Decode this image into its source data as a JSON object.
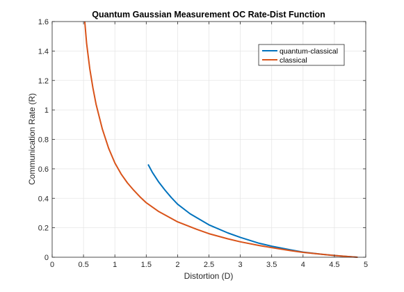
{
  "chart_data": {
    "type": "line",
    "title": "Quantum Gaussian Measurement OC Rate-Dist Function",
    "xlabel": "Distortion (D)",
    "ylabel": "Communication Rate (R)",
    "xlim": [
      0,
      5
    ],
    "ylim": [
      0,
      1.6
    ],
    "xticks": [
      "0",
      "0.5",
      "1",
      "1.5",
      "2",
      "2.5",
      "3",
      "3.5",
      "4",
      "4.5",
      "5"
    ],
    "yticks": [
      "0",
      "0.2",
      "0.4",
      "0.6",
      "0.8",
      "1",
      "1.2",
      "1.4",
      "1.6"
    ],
    "grid": true,
    "legend_position": "top-right",
    "series": [
      {
        "name": "quantum-classical",
        "color": "#0072BD",
        "x": [
          1.53,
          1.6,
          1.7,
          1.8,
          1.9,
          2.0,
          2.2,
          2.5,
          2.8,
          3.0,
          3.3,
          3.5,
          3.8,
          4.0,
          4.3,
          4.5,
          4.7,
          4.87
        ],
        "y": [
          0.63,
          0.575,
          0.51,
          0.455,
          0.405,
          0.36,
          0.295,
          0.22,
          0.165,
          0.135,
          0.095,
          0.075,
          0.05,
          0.035,
          0.02,
          0.012,
          0.005,
          0.0
        ]
      },
      {
        "name": "classical",
        "color": "#D95319",
        "x": [
          0.52,
          0.55,
          0.6,
          0.65,
          0.7,
          0.8,
          0.9,
          1.0,
          1.1,
          1.2,
          1.3,
          1.4,
          1.5,
          1.7,
          2.0,
          2.3,
          2.5,
          2.8,
          3.0,
          3.3,
          3.5,
          3.8,
          4.0,
          4.3,
          4.5,
          4.7,
          4.87
        ],
        "y": [
          1.6,
          1.45,
          1.28,
          1.15,
          1.04,
          0.87,
          0.74,
          0.64,
          0.565,
          0.505,
          0.455,
          0.41,
          0.37,
          0.31,
          0.24,
          0.19,
          0.16,
          0.125,
          0.105,
          0.08,
          0.065,
          0.045,
          0.033,
          0.02,
          0.012,
          0.005,
          0.0
        ]
      }
    ]
  }
}
